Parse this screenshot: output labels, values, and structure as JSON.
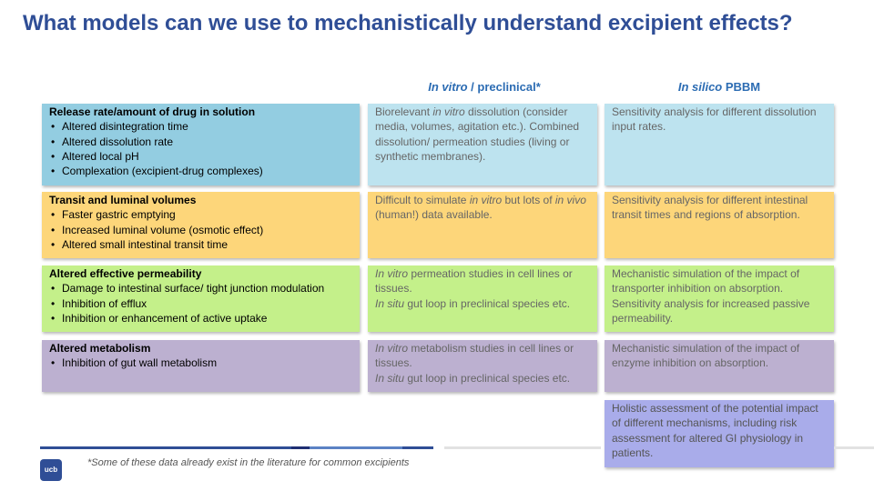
{
  "title": "What models can we use to mechanistically understand excipient effects?",
  "columns": {
    "invitro": {
      "italic": "In vitro",
      "rest": " / preclinical*"
    },
    "insilico": {
      "italic": "In silico",
      "rest": " PBBM"
    }
  },
  "rows": [
    {
      "heading": "Release rate/amount of drug in solution",
      "items": [
        "Altered disintegration time",
        "Altered dissolution rate",
        "Altered local pH",
        "Complexation (excipient-drug complexes)"
      ],
      "invitro": [
        {
          "t": "Biorelevant "
        },
        {
          "i": "in vitro"
        },
        {
          "t": " dissolution (consider media, volumes, agitation etc.). Combined dissolution/ permeation studies (living or synthetic membranes)."
        }
      ],
      "insilico": "Sensitivity analysis for different dissolution input rates."
    },
    {
      "heading": "Transit and luminal volumes",
      "items": [
        "Faster gastric emptying",
        "Increased luminal volume (osmotic effect)",
        "Altered small intestinal transit time"
      ],
      "invitro": [
        {
          "t": "Difficult to simulate "
        },
        {
          "i": "in vitro"
        },
        {
          "t": " but lots of "
        },
        {
          "i": "in vivo"
        },
        {
          "t": " (human!) data available."
        }
      ],
      "insilico": "Sensitivity analysis for different intestinal transit times and regions of absorption."
    },
    {
      "heading": "Altered effective permeability",
      "items": [
        "Damage to intestinal surface/ tight junction modulation",
        "Inhibition of efflux",
        "Inhibition or enhancement of active uptake"
      ],
      "invitro": [
        {
          "i": "In vitro"
        },
        {
          "t": " permeation studies in cell lines or tissues."
        },
        {
          "br": true
        },
        {
          "i": "In situ"
        },
        {
          "t": " gut loop in preclinical species etc."
        }
      ],
      "insilico": "Mechanistic simulation of the impact of transporter inhibition on absorption. Sensitivity analysis for increased passive permeability."
    },
    {
      "heading": "Altered metabolism",
      "items": [
        "Inhibition of gut wall metabolism"
      ],
      "invitro": [
        {
          "i": "In vitro"
        },
        {
          "t": " metabolism studies in cell lines or tissues."
        },
        {
          "br": true
        },
        {
          "i": "In situ"
        },
        {
          "t": " gut loop in preclinical species etc."
        }
      ],
      "insilico": "Mechanistic simulation of the impact of enzyme inhibition on absorption."
    }
  ],
  "holistic": "Holistic assessment of the potential impact of different mechanisms, including risk assessment for altered GI physiology in patients.",
  "footnote": "*Some of these data already exist in the literature for common excipients",
  "logo": "ucb",
  "colors": {
    "title": "#2f4e96",
    "column_heading": "#2c6cb3",
    "row1": "#93cde1",
    "row1_light": "#bde3ef",
    "row2": "#fdd67a",
    "row3": "#c4f08a",
    "row4": "#bcb0d0",
    "holistic": "#a9acea"
  }
}
